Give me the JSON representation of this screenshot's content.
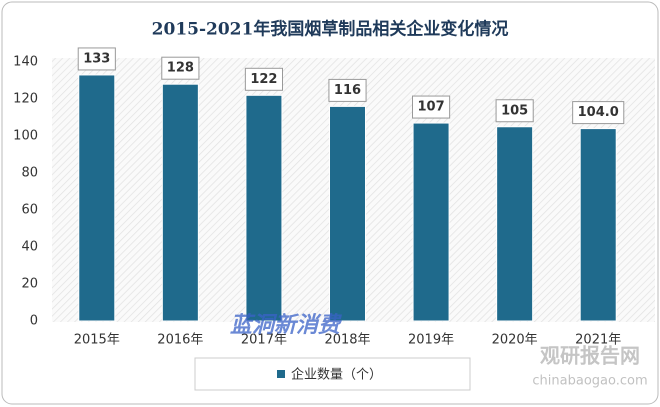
{
  "chart_data": {
    "type": "bar",
    "title": "2015-2021年我国烟草制品相关企业变化情况",
    "categories": [
      "2015年",
      "2016年",
      "2017年",
      "2018年",
      "2019年",
      "2020年",
      "2021年"
    ],
    "series": [
      {
        "name": "企业数量（个）",
        "color": "#1f6a8c",
        "values": [
          133,
          128,
          122,
          116,
          107,
          105,
          104
        ],
        "value_labels": [
          "133",
          "128",
          "122",
          "116",
          "107",
          "105",
          "104.0"
        ]
      }
    ],
    "ylim": [
      0,
      140
    ],
    "yticks": [
      0,
      20,
      40,
      60,
      80,
      100,
      120,
      140
    ],
    "grid": false,
    "legend": "bottom"
  },
  "watermarks": [
    "蓝洞新消费",
    "观研报告网",
    "chinabaogao.com"
  ]
}
